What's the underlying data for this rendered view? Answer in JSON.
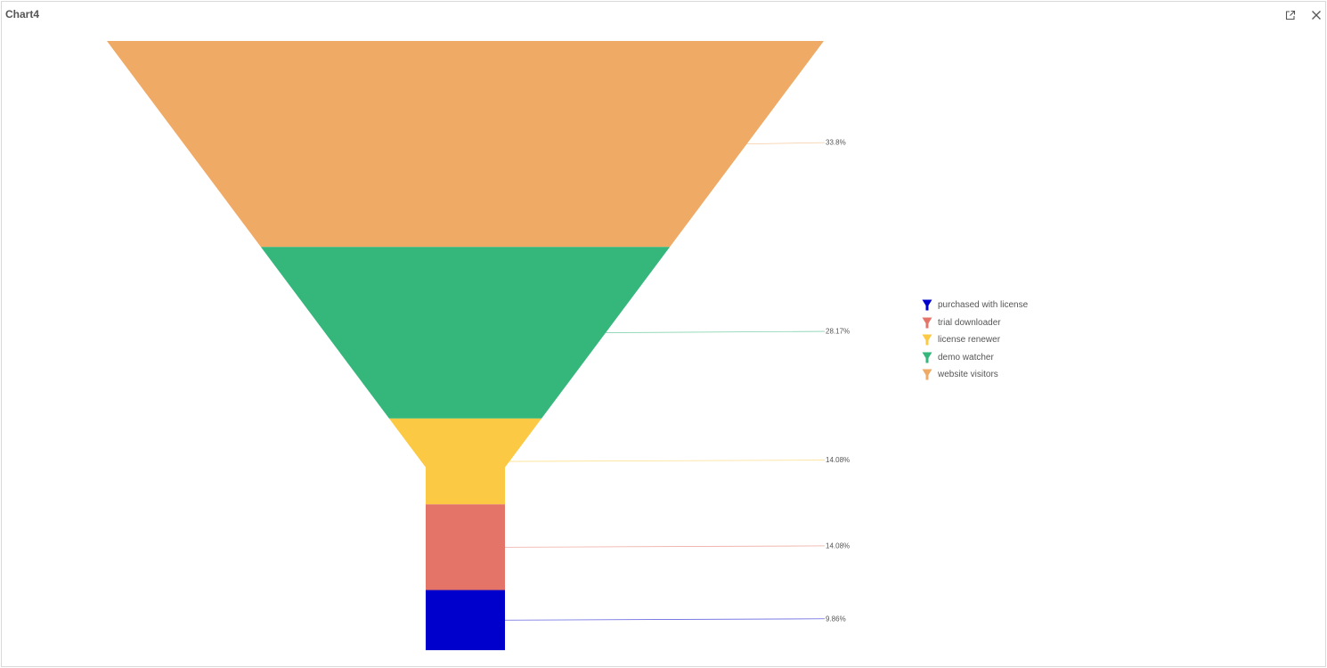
{
  "window": {
    "title": "Chart4"
  },
  "toolbar": {
    "share_icon": "share-export-icon",
    "close_icon": "close-icon"
  },
  "chart_data": {
    "type": "funnel",
    "segments": [
      {
        "name": "website visitors",
        "label": "33.8%",
        "value": 33.8,
        "color": "#EFAA65"
      },
      {
        "name": "demo watcher",
        "label": "28.17%",
        "value": 28.17,
        "color": "#35B77B"
      },
      {
        "name": "license renewer",
        "label": "14.08%",
        "value": 14.08,
        "color": "#FBC943"
      },
      {
        "name": "trial downloader",
        "label": "14.08%",
        "value": 14.08,
        "color": "#E57468"
      },
      {
        "name": "purchased with license",
        "label": "9.86%",
        "value": 9.86,
        "color": "#0000CC"
      }
    ],
    "legend": {
      "position": "right",
      "items": [
        {
          "name": "purchased with license",
          "color": "#0000CC"
        },
        {
          "name": "trial downloader",
          "color": "#E57468"
        },
        {
          "name": "license renewer",
          "color": "#FBC943"
        },
        {
          "name": "demo watcher",
          "color": "#35B77B"
        },
        {
          "name": "website visitors",
          "color": "#EFAA65"
        }
      ]
    }
  }
}
